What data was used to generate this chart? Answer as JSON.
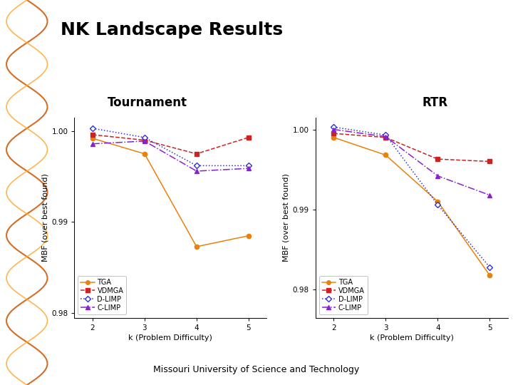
{
  "title": "NK Landscape Results",
  "subtitle_left": "Tournament",
  "subtitle_right": "RTR",
  "footer": "Missouri University of Science and Technology",
  "xlabel": "k (Problem Difficulty)",
  "ylabel": "MBF (over best found)",
  "k_values": [
    2,
    3,
    4,
    5
  ],
  "tournament": {
    "TGA": [
      0.9992,
      0.9975,
      0.9873,
      0.9885
    ],
    "VDMGA": [
      0.9996,
      0.999,
      0.9975,
      0.9993
    ],
    "D-LIMP": [
      1.0003,
      0.9993,
      0.9962,
      0.9962
    ],
    "C-LIMP": [
      0.9986,
      0.9989,
      0.9956,
      0.9959
    ]
  },
  "rtr": {
    "TGA": [
      0.999,
      0.9968,
      0.991,
      0.9818
    ],
    "VDMGA": [
      0.9995,
      0.999,
      0.9963,
      0.996
    ],
    "D-LIMP": [
      1.0003,
      0.9993,
      0.9906,
      0.9828
    ],
    "C-LIMP": [
      1.0,
      0.9991,
      0.9942,
      0.9918
    ]
  },
  "colors": {
    "TGA": "#E8820A",
    "VDMGA": "#CC2222",
    "D-LIMP": "#3333CC",
    "C-LIMP": "#8822CC"
  },
  "linestyles": {
    "TGA": "solid",
    "VDMGA": "dashed",
    "D-LIMP": "dotted",
    "C-LIMP": "dashdot"
  },
  "markers": {
    "TGA": "o",
    "VDMGA": "s",
    "D-LIMP": "D",
    "C-LIMP": "^"
  },
  "bg_color": "#7A1F00",
  "stripe_color1": "#CC5500",
  "stripe_color2": "#FFAA33",
  "title_fontsize": 18,
  "subtitle_fontsize": 12,
  "axis_label_fontsize": 8,
  "tick_fontsize": 7.5,
  "legend_fontsize": 7,
  "footer_fontsize": 9,
  "ylim_tournament": [
    0.9795,
    1.0015
  ],
  "ylim_rtr": [
    0.9765,
    1.0015
  ],
  "yticks_tournament": [
    0.98,
    0.99,
    1.0
  ],
  "yticks_rtr": [
    0.98,
    0.99,
    1.0
  ]
}
